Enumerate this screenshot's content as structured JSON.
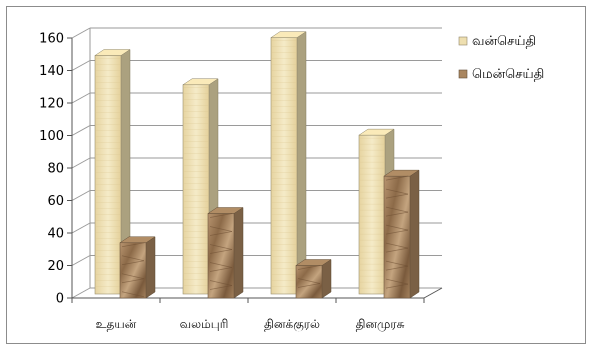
{
  "chart_data": {
    "type": "bar",
    "title": "",
    "xlabel": "",
    "ylabel": "",
    "ylim": [
      0,
      160
    ],
    "yticks": [
      0,
      20,
      40,
      60,
      80,
      100,
      120,
      140,
      160
    ],
    "grid": true,
    "legend_position": "right",
    "style": "3d-clustered-column, textured fills",
    "categories": [
      "உதயன்",
      "வலம்புரி",
      "தினக்குரல்",
      "தினமுரசு"
    ],
    "series": [
      {
        "name": "வன்செய்தி",
        "values": [
          148,
          130,
          159,
          99
        ],
        "color": "#eedfb0"
      },
      {
        "name": "மென்செய்தி",
        "values": [
          34,
          52,
          20,
          75
        ],
        "color": "#a98660"
      }
    ]
  }
}
